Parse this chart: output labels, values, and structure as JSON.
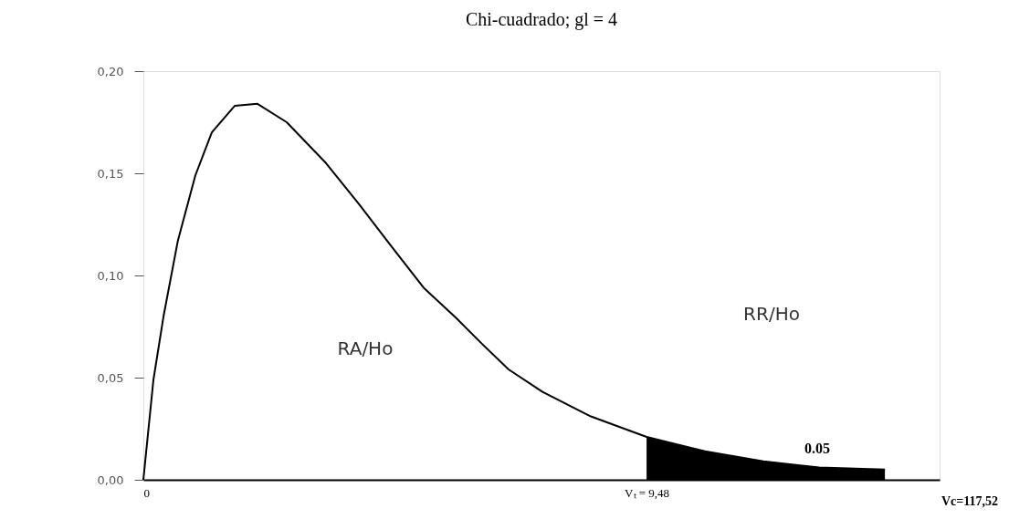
{
  "chart_data": {
    "type": "line",
    "title": "Chi-cuadrado; gl = 4",
    "series": [
      {
        "color": "#000000",
        "x": [
          0,
          0.19,
          0.38,
          0.65,
          0.98,
          1.29,
          1.72,
          2.15,
          2.7,
          3.44,
          4.06,
          4.68,
          5.28,
          5.9,
          6.4,
          6.88,
          7.52,
          8.43,
          9.48,
          10.58,
          11.68,
          12.73,
          13.97
        ],
        "values": [
          0,
          0.049,
          0.08,
          0.117,
          0.149,
          0.17,
          0.183,
          0.184,
          0.175,
          0.155,
          0.135,
          0.114,
          0.094,
          0.079,
          0.066,
          0.054,
          0.043,
          0.031,
          0.021,
          0.014,
          0.009,
          0.006,
          0.005
        ]
      },
      {
        "type": "area",
        "color": "#000000",
        "x": [
          9.48,
          10.58,
          11.68,
          12.73,
          13.97
        ],
        "values": [
          0.021,
          0.014,
          0.009,
          0.006,
          0.005
        ]
      }
    ],
    "xlim": [
      0,
      15
    ],
    "xticks": [
      0,
      {
        "value": 9.48,
        "label": "Vₜ = 9,48"
      }
    ],
    "ylim": [
      0,
      0.2
    ],
    "yticks": [
      {
        "value": 0,
        "label": "0,00"
      },
      {
        "value": 0.05,
        "label": "0,05"
      },
      {
        "value": 0.1,
        "label": "0,10"
      },
      {
        "value": 0.15,
        "label": "0,15"
      },
      {
        "value": 0.2,
        "label": "0,20"
      }
    ],
    "annotations": [
      "RA/Ho",
      "RR/Ho",
      "0.05",
      "Vc=117,52"
    ]
  }
}
